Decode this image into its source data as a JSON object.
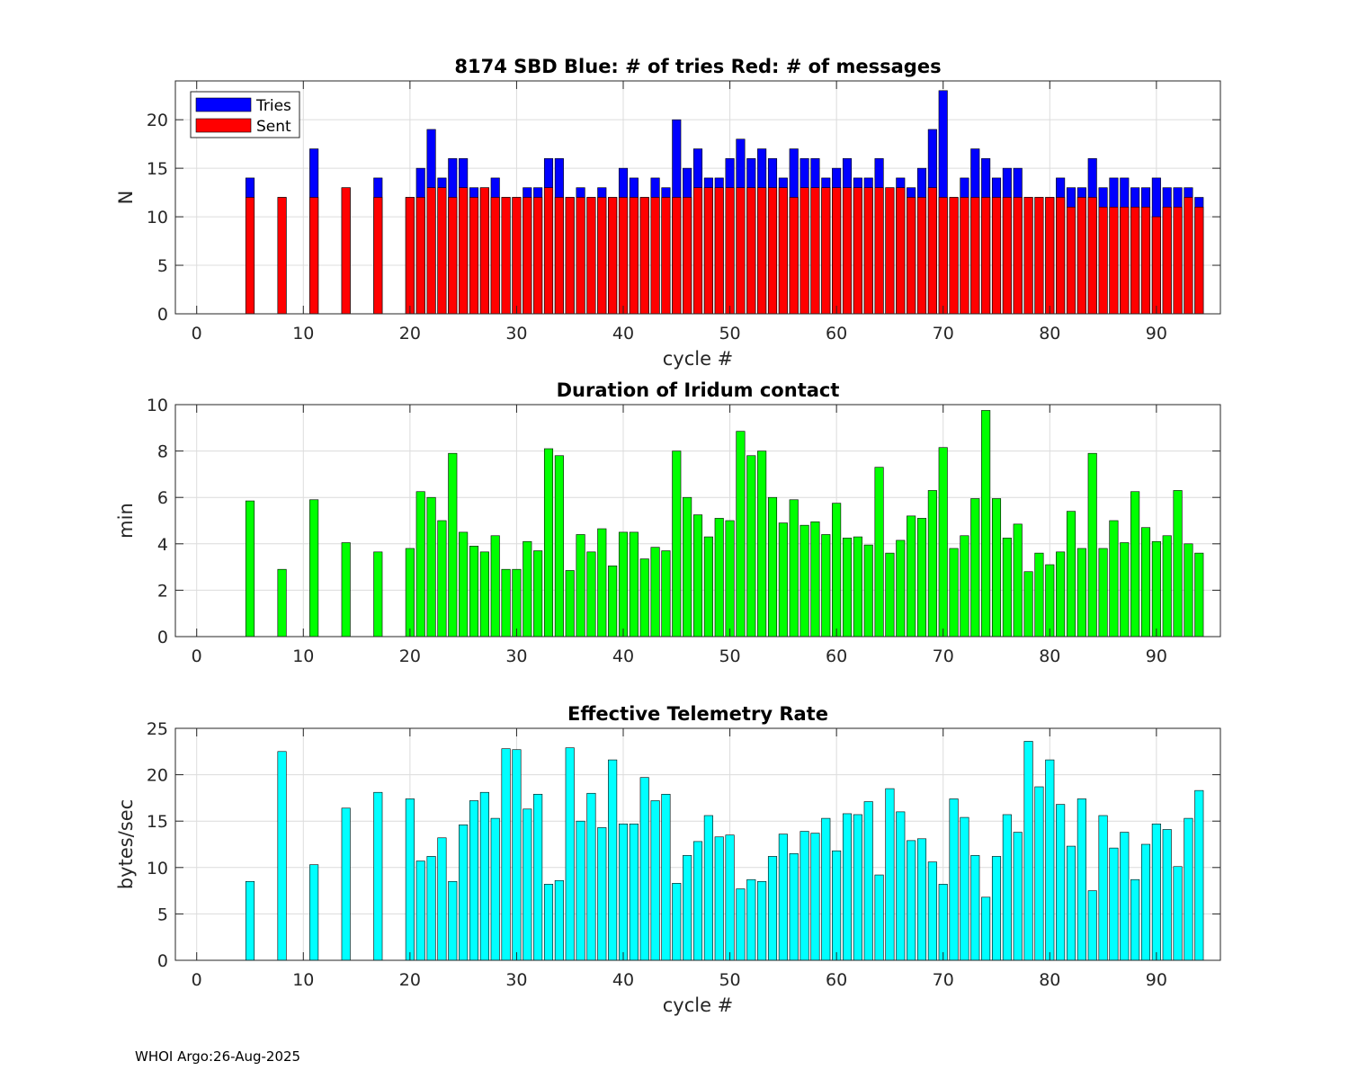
{
  "footer": "WHOI Argo:26-Aug-2025",
  "chart_data": [
    {
      "type": "bar",
      "title": "8174 SBD  Blue: # of tries   Red: # of messages",
      "xlabel": "cycle #",
      "ylabel": "N",
      "xlim": [
        -2,
        96
      ],
      "ylim": [
        0,
        24
      ],
      "xticks": [
        0,
        10,
        20,
        30,
        40,
        50,
        60,
        70,
        80,
        90
      ],
      "yticks": [
        0,
        5,
        10,
        15,
        20
      ],
      "grid": true,
      "legend_position": "top-left",
      "colors": {
        "Tries": "#0000ff",
        "Sent": "#ff0000"
      },
      "x": [
        5,
        8,
        11,
        14,
        17,
        20,
        21,
        22,
        23,
        24,
        25,
        26,
        27,
        28,
        29,
        30,
        31,
        32,
        33,
        34,
        35,
        36,
        37,
        38,
        39,
        40,
        41,
        42,
        43,
        44,
        45,
        46,
        47,
        48,
        49,
        50,
        51,
        52,
        53,
        54,
        55,
        56,
        57,
        58,
        59,
        60,
        61,
        62,
        63,
        64,
        65,
        66,
        67,
        68,
        69,
        70,
        71,
        72,
        73,
        74,
        75,
        76,
        77,
        78,
        79,
        80,
        81,
        82,
        83,
        84,
        85,
        86,
        87,
        88,
        89,
        90,
        91,
        92,
        93,
        94
      ],
      "series": [
        {
          "name": "Tries",
          "values": [
            14,
            12,
            17,
            13,
            14,
            12,
            15,
            19,
            14,
            16,
            16,
            13,
            13,
            14,
            12,
            12,
            13,
            13,
            16,
            16,
            12,
            13,
            12,
            13,
            12,
            15,
            14,
            12,
            14,
            13,
            20,
            15,
            17,
            14,
            14,
            16,
            18,
            16,
            17,
            16,
            14,
            17,
            16,
            16,
            14,
            15,
            16,
            14,
            14,
            16,
            13,
            14,
            13,
            15,
            19,
            23,
            12,
            14,
            17,
            16,
            14,
            15,
            15,
            12,
            12,
            12,
            14,
            13,
            13,
            16,
            13,
            14,
            14,
            13,
            13,
            14,
            13,
            13,
            13,
            12
          ]
        },
        {
          "name": "Sent",
          "values": [
            12,
            12,
            12,
            13,
            12,
            12,
            12,
            13,
            13,
            12,
            13,
            12,
            13,
            12,
            12,
            12,
            12,
            12,
            13,
            12,
            12,
            12,
            12,
            12,
            12,
            12,
            12,
            12,
            12,
            12,
            12,
            12,
            13,
            13,
            13,
            13,
            13,
            13,
            13,
            13,
            13,
            12,
            13,
            13,
            13,
            13,
            13,
            13,
            13,
            13,
            13,
            13,
            12,
            12,
            13,
            12,
            12,
            12,
            12,
            12,
            12,
            12,
            12,
            12,
            12,
            12,
            12,
            11,
            12,
            12,
            11,
            11,
            11,
            11,
            11,
            10,
            11,
            11,
            12,
            11
          ]
        }
      ]
    },
    {
      "type": "bar",
      "title": "Duration of Iridum contact",
      "xlabel": "",
      "ylabel": "min",
      "xlim": [
        -2,
        96
      ],
      "ylim": [
        0,
        10
      ],
      "xticks": [
        0,
        10,
        20,
        30,
        40,
        50,
        60,
        70,
        80,
        90
      ],
      "yticks": [
        0,
        2,
        4,
        6,
        8,
        10
      ],
      "grid": true,
      "colors": {
        "bar": "#00ff00"
      },
      "x": [
        5,
        8,
        11,
        14,
        17,
        20,
        21,
        22,
        23,
        24,
        25,
        26,
        27,
        28,
        29,
        30,
        31,
        32,
        33,
        34,
        35,
        36,
        37,
        38,
        39,
        40,
        41,
        42,
        43,
        44,
        45,
        46,
        47,
        48,
        49,
        50,
        51,
        52,
        53,
        54,
        55,
        56,
        57,
        58,
        59,
        60,
        61,
        62,
        63,
        64,
        65,
        66,
        67,
        68,
        69,
        70,
        71,
        72,
        73,
        74,
        75,
        76,
        77,
        78,
        79,
        80,
        81,
        82,
        83,
        84,
        85,
        86,
        87,
        88,
        89,
        90,
        91,
        92,
        93,
        94
      ],
      "values": [
        5.85,
        2.9,
        5.9,
        4.05,
        3.65,
        3.8,
        6.25,
        6.0,
        5.0,
        7.9,
        4.5,
        3.9,
        3.65,
        4.35,
        2.9,
        2.9,
        4.1,
        3.7,
        8.1,
        7.8,
        2.85,
        4.4,
        3.65,
        4.65,
        3.05,
        4.5,
        4.5,
        3.35,
        3.85,
        3.7,
        8.0,
        6.0,
        5.25,
        4.3,
        5.1,
        5.0,
        8.85,
        7.8,
        8.0,
        6.0,
        4.9,
        5.9,
        4.8,
        4.95,
        4.4,
        5.75,
        4.25,
        4.3,
        3.95,
        7.3,
        3.6,
        4.15,
        5.2,
        5.1,
        6.3,
        8.15,
        3.8,
        4.35,
        5.95,
        9.75,
        5.95,
        4.25,
        4.85,
        2.8,
        3.6,
        3.1,
        3.65,
        5.4,
        3.8,
        7.9,
        3.8,
        5.0,
        4.05,
        6.25,
        4.7,
        4.1,
        4.35,
        6.3,
        4.0,
        3.6
      ]
    },
    {
      "type": "bar",
      "title": "Effective Telemetry Rate",
      "xlabel": "cycle #",
      "ylabel": "bytes/sec",
      "xlim": [
        -2,
        96
      ],
      "ylim": [
        0,
        25
      ],
      "xticks": [
        0,
        10,
        20,
        30,
        40,
        50,
        60,
        70,
        80,
        90
      ],
      "yticks": [
        0,
        5,
        10,
        15,
        20,
        25
      ],
      "grid": true,
      "colors": {
        "bar": "#00ffff"
      },
      "x": [
        5,
        8,
        11,
        14,
        17,
        20,
        21,
        22,
        23,
        24,
        25,
        26,
        27,
        28,
        29,
        30,
        31,
        32,
        33,
        34,
        35,
        36,
        37,
        38,
        39,
        40,
        41,
        42,
        43,
        44,
        45,
        46,
        47,
        48,
        49,
        50,
        51,
        52,
        53,
        54,
        55,
        56,
        57,
        58,
        59,
        60,
        61,
        62,
        63,
        64,
        65,
        66,
        67,
        68,
        69,
        70,
        71,
        72,
        73,
        74,
        75,
        76,
        77,
        78,
        79,
        80,
        81,
        82,
        83,
        84,
        85,
        86,
        87,
        88,
        89,
        90,
        91,
        92,
        93,
        94
      ],
      "values": [
        8.5,
        22.5,
        10.3,
        16.4,
        18.1,
        17.4,
        10.7,
        11.2,
        13.2,
        8.5,
        14.6,
        17.2,
        18.1,
        15.3,
        22.8,
        22.7,
        16.3,
        17.9,
        8.2,
        8.6,
        22.9,
        15.0,
        18.0,
        14.3,
        21.6,
        14.7,
        14.7,
        19.7,
        17.2,
        17.9,
        8.3,
        11.3,
        12.8,
        15.6,
        13.3,
        13.5,
        7.7,
        8.7,
        8.5,
        11.2,
        13.6,
        11.5,
        13.9,
        13.7,
        15.3,
        11.8,
        15.8,
        15.7,
        17.1,
        9.2,
        18.5,
        16.0,
        12.9,
        13.1,
        10.6,
        8.2,
        17.4,
        15.4,
        11.3,
        6.8,
        11.2,
        15.7,
        13.8,
        23.6,
        18.7,
        21.6,
        16.8,
        12.3,
        17.4,
        7.5,
        15.6,
        12.1,
        13.8,
        8.7,
        12.5,
        14.7,
        14.1,
        10.1,
        15.3,
        18.3
      ]
    }
  ]
}
